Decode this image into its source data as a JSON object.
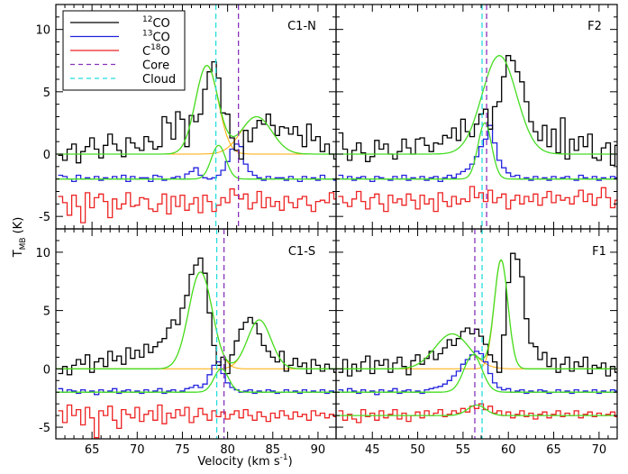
{
  "figure": {
    "ylabel": "T",
    "ylabel_sub": "MB",
    "ylabel_unit": "(K)",
    "xlabel": "Velocity (km s",
    "xlabel_sup": "-1",
    "xlabel_close": ")"
  },
  "legend": {
    "entries": [
      {
        "sup": "12",
        "text": "CO",
        "color": "#000000",
        "dash": false
      },
      {
        "sup": "13",
        "text": "CO",
        "color": "#2222dd",
        "dash": false
      },
      {
        "pre": "C",
        "sup": "18",
        "text": "O",
        "color": "#ee2222",
        "dash": false
      },
      {
        "text": "Core",
        "color": "#8833bb",
        "dash": true
      },
      {
        "text": "Cloud",
        "color": "#22dddd",
        "dash": true
      }
    ]
  },
  "colors": {
    "co12": "#000000",
    "co13": "#2222dd",
    "c18o": "#ee2222",
    "gauss": "#44dd22",
    "comp": "#ffaa00",
    "core": "#8833bb",
    "cloud": "#22dddd"
  },
  "chart_data": [
    {
      "panel": "C1-N",
      "type": "line",
      "xlim": [
        61,
        92
      ],
      "ylim": [
        -6,
        12
      ],
      "xticks": [
        "65",
        "70",
        "75",
        "80",
        "85",
        "90"
      ],
      "yticks": [
        "-5",
        "0",
        "5",
        "10"
      ],
      "show_xticks": false,
      "show_yticks": true,
      "core": 81.2,
      "cloud": 78.7,
      "co12": {
        "x0": 61.5,
        "dx": 0.5,
        "values": [
          -0.1,
          -0.5,
          0.4,
          0.8,
          -0.7,
          0.2,
          0.6,
          1.3,
          0.4,
          -0.3,
          0.7,
          1.6,
          0.8,
          0.3,
          -0.2,
          1.3,
          0.9,
          0.5,
          0.3,
          1.4,
          1.0,
          0.4,
          0.6,
          3.0,
          2.5,
          1.2,
          3.4,
          2.8,
          0.6,
          3.1,
          2.6,
          3.2,
          5.2,
          6.6,
          7.4,
          6.1,
          3.3,
          3.2,
          1.3,
          0.3,
          -0.4,
          1.9,
          1.0,
          2.1,
          2.7,
          2.4,
          3.2,
          2.3,
          1.5,
          2.2,
          2.1,
          1.6,
          2.2,
          1.5,
          0.6,
          2.4,
          1.1,
          1.4,
          0.2,
          0.8,
          0.0,
          -0.4
        ]
      },
      "co13": {
        "x0": 61.5,
        "dx": 0.5,
        "baseline": -2.0,
        "values": [
          -1.7,
          -1.8,
          -2.0,
          -2.2,
          -1.7,
          -2.0,
          -1.9,
          -2.0,
          -1.8,
          -2.1,
          -1.9,
          -2.0,
          -1.8,
          -2.0,
          -1.7,
          -2.2,
          -1.8,
          -2.0,
          -1.9,
          -1.9,
          -2.2,
          -1.7,
          -1.8,
          -2.1,
          -2.0,
          -1.9,
          -1.8,
          -2.0,
          -1.6,
          -1.4,
          -1.1,
          -1.7,
          -1.9,
          -2.0,
          -1.9,
          -1.7,
          -1.3,
          -0.6,
          0.4,
          0.8,
          0.6,
          -0.8,
          -1.4,
          -1.7,
          -1.9,
          -2.1,
          -1.8,
          -2.0,
          -1.9,
          -1.9,
          -2.1,
          -1.8,
          -2.0,
          -2.2,
          -1.8,
          -2.0,
          -1.9,
          -2.1,
          -1.7,
          -2.0,
          -2.0,
          -2.1
        ]
      },
      "c18o": {
        "x0": 61.5,
        "dx": 0.5,
        "values": [
          -3.4,
          -3.9,
          -4.9,
          -3.3,
          -4.2,
          -5.5,
          -3.1,
          -4.3,
          -3.5,
          -3.2,
          -3.8,
          -5.1,
          -3.6,
          -4.4,
          -4.0,
          -3.1,
          -4.2,
          -4.1,
          -3.5,
          -3.6,
          -4.4,
          -4.6,
          -4.0,
          -3.2,
          -4.8,
          -3.4,
          -4.2,
          -3.3,
          -4.5,
          -4.0,
          -3.5,
          -4.7,
          -3.3,
          -3.8,
          -4.6,
          -4.1,
          -3.5,
          -3.9,
          -2.8,
          -3.3,
          -3.6,
          -3.2,
          -4.4,
          -3.9,
          -3.0,
          -4.3,
          -3.5,
          -4.2,
          -3.8,
          -4.5,
          -3.4,
          -3.9,
          -4.3,
          -3.6,
          -3.4,
          -4.1,
          -4.6,
          -3.8,
          -3.7,
          -3.9,
          -3.1,
          -3.6
        ]
      },
      "gauss12": [
        {
          "a": 7.1,
          "c": 77.7,
          "s": 1.25
        },
        {
          "a": 3.0,
          "c": 83.2,
          "s": 1.7
        }
      ],
      "gauss13": [
        {
          "a": 2.7,
          "c": 79.0,
          "s": 0.8
        }
      ],
      "comp_baseline": 0
    },
    {
      "panel": "F2",
      "type": "line",
      "xlim": [
        41,
        72
      ],
      "ylim": [
        -6,
        12
      ],
      "xticks": [
        "45",
        "50",
        "55",
        "60",
        "65",
        "70"
      ],
      "yticks": [
        "-5",
        "0",
        "5",
        "10"
      ],
      "show_xticks": false,
      "show_yticks": false,
      "core": 57.6,
      "cloud": 57.1,
      "co12": {
        "x0": 41.5,
        "dx": 0.5,
        "values": [
          1.7,
          0.4,
          -0.5,
          0.3,
          0.9,
          0.1,
          -0.6,
          -0.2,
          1.1,
          0.4,
          0.8,
          0.0,
          -0.4,
          0.2,
          1.2,
          0.5,
          0.0,
          1.2,
          1.3,
          0.7,
          0.2,
          0.9,
          0.8,
          1.5,
          1.3,
          2.1,
          1.1,
          2.8,
          1.8,
          1.4,
          2.4,
          3.2,
          3.6,
          2.0,
          3.8,
          4.2,
          6.2,
          7.9,
          7.5,
          6.6,
          5.8,
          4.2,
          2.6,
          1.8,
          1.1,
          2.3,
          0.6,
          2.0,
          0.1,
          2.9,
          -0.4,
          1.2,
          0.3,
          1.4,
          0.6,
          1.6,
          -0.3,
          -0.5,
          0.5,
          0.9,
          -0.9,
          0.7
        ]
      },
      "co13": {
        "x0": 41.5,
        "dx": 0.5,
        "baseline": -2.0,
        "values": [
          -1.7,
          -2.0,
          -1.8,
          -2.1,
          -1.9,
          -1.8,
          -2.0,
          -2.2,
          -1.8,
          -1.9,
          -2.0,
          -2.1,
          -1.8,
          -2.0,
          -1.7,
          -2.1,
          -1.9,
          -2.0,
          -1.8,
          -2.1,
          -1.9,
          -1.8,
          -2.2,
          -1.9,
          -1.7,
          -1.9,
          -1.6,
          -1.4,
          -1.2,
          -0.8,
          -0.2,
          0.6,
          1.2,
          2.3,
          0.9,
          -0.5,
          -1.1,
          -1.5,
          -1.8,
          -1.7,
          -2.0,
          -1.9,
          -2.1,
          -1.8,
          -2.0,
          -1.9,
          -2.1,
          -1.8,
          -2.0,
          -1.9,
          -1.8,
          -2.0,
          -2.1,
          -1.7,
          -1.9,
          -2.0,
          -1.8,
          -2.1,
          -1.9,
          -2.0,
          -1.8,
          -1.9
        ]
      },
      "c18o": {
        "x0": 41.5,
        "dx": 0.5,
        "values": [
          -3.4,
          -3.9,
          -4.2,
          -3.6,
          -3.0,
          -3.8,
          -4.4,
          -3.5,
          -3.2,
          -4.0,
          -4.6,
          -3.3,
          -3.9,
          -3.6,
          -4.1,
          -3.2,
          -3.7,
          -4.4,
          -3.3,
          -4.0,
          -3.6,
          -4.6,
          -3.1,
          -3.8,
          -4.2,
          -3.4,
          -4.0,
          -3.6,
          -3.8,
          -2.6,
          -3.5,
          -3.1,
          -3.8,
          -2.9,
          -3.9,
          -3.5,
          -3.2,
          -4.4,
          -3.7,
          -3.3,
          -4.0,
          -3.4,
          -3.8,
          -3.2,
          -4.1,
          -3.5,
          -3.0,
          -3.9,
          -3.3,
          -3.7,
          -3.5,
          -4.0,
          -3.4,
          -2.9,
          -3.8,
          -3.2,
          -4.1,
          -3.5,
          -2.7,
          -3.5,
          -4.3,
          -3.7
        ]
      },
      "gauss12": [
        {
          "a": 7.9,
          "c": 59.0,
          "s": 1.9
        }
      ],
      "gauss13": [
        {
          "a": 4.5,
          "c": 57.4,
          "s": 0.75
        }
      ],
      "comp_baseline": null
    },
    {
      "panel": "C1-S",
      "type": "line",
      "xlim": [
        61,
        92
      ],
      "ylim": [
        -6,
        12
      ],
      "xticks": [
        "65",
        "70",
        "75",
        "80",
        "85",
        "90"
      ],
      "yticks": [
        "-5",
        "0",
        "5",
        "10"
      ],
      "show_xticks": true,
      "show_yticks": true,
      "core": 79.6,
      "cloud": 78.8,
      "co12": {
        "x0": 61.5,
        "dx": 0.5,
        "values": [
          -0.4,
          0.2,
          -0.5,
          0.3,
          0.8,
          0.4,
          1.2,
          -0.3,
          0.6,
          0.9,
          0.2,
          1.5,
          0.7,
          1.1,
          0.4,
          1.8,
          0.9,
          1.6,
          1.0,
          2.1,
          1.4,
          1.9,
          2.3,
          2.6,
          3.5,
          4.2,
          3.8,
          5.2,
          6.3,
          8.1,
          8.9,
          9.5,
          8.2,
          4.8,
          2.0,
          0.3,
          1.0,
          -0.4,
          1.2,
          2.4,
          3.4,
          4.0,
          4.4,
          3.9,
          3.0,
          2.0,
          1.5,
          1.0,
          0.6,
          1.5,
          -0.2,
          0.3,
          0.9,
          0.2,
          0.5,
          -0.4,
          0.8,
          0.3,
          -0.2,
          0.4,
          0.0,
          -0.3
        ]
      },
      "co13": {
        "x0": 61.5,
        "dx": 0.5,
        "baseline": -2.0,
        "values": [
          -1.7,
          -2.0,
          -1.8,
          -1.9,
          -2.1,
          -1.8,
          -2.0,
          -1.9,
          -2.2,
          -1.8,
          -2.0,
          -1.9,
          -1.7,
          -2.1,
          -1.9,
          -1.8,
          -2.0,
          -1.9,
          -2.1,
          -1.8,
          -2.0,
          -1.9,
          -1.7,
          -2.1,
          -1.9,
          -1.8,
          -2.0,
          -1.9,
          -1.7,
          -1.6,
          -1.4,
          -1.6,
          -1.3,
          -0.5,
          0.3,
          0.6,
          -0.4,
          -1.2,
          -1.6,
          -1.8,
          -2.0,
          -1.9,
          -1.8,
          -2.1,
          -1.9,
          -2.0,
          -1.8,
          -1.9,
          -2.1,
          -2.0,
          -1.8,
          -2.0,
          -1.9,
          -2.1,
          -1.8,
          -2.0,
          -1.9,
          -2.0,
          -1.8,
          -2.1,
          -1.9,
          -2.0
        ]
      },
      "c18o": {
        "x0": 61.5,
        "dx": 0.5,
        "values": [
          -3.6,
          -4.6,
          -3.1,
          -4.0,
          -3.5,
          -4.8,
          -3.3,
          -4.2,
          -5.9,
          -3.6,
          -4.0,
          -3.2,
          -4.4,
          -5.1,
          -3.5,
          -3.9,
          -4.2,
          -3.3,
          -4.5,
          -3.9,
          -3.6,
          -4.4,
          -3.1,
          -4.7,
          -3.8,
          -4.2,
          -3.5,
          -4.0,
          -3.3,
          -4.6,
          -4.1,
          -3.4,
          -3.9,
          -4.4,
          -3.6,
          -4.1,
          -3.7,
          -4.3,
          -3.9,
          -3.6,
          -4.2,
          -3.5,
          -4.0,
          -4.4,
          -3.7,
          -4.1,
          -4.5,
          -3.8,
          -4.2,
          -3.6,
          -4.0,
          -4.3,
          -3.7,
          -4.1,
          -3.9,
          -4.4,
          -3.6,
          -4.0,
          -3.8,
          -4.2,
          -3.9,
          -4.1
        ]
      },
      "gauss12": [
        {
          "a": 8.3,
          "c": 77.0,
          "s": 1.3
        },
        {
          "a": 4.2,
          "c": 83.5,
          "s": 1.3
        }
      ],
      "gauss13": [
        {
          "a": 2.0,
          "c": 79.3,
          "s": 0.8
        }
      ],
      "comp_baseline": 0
    },
    {
      "panel": "F1",
      "type": "line",
      "xlim": [
        41,
        72
      ],
      "ylim": [
        -6,
        12
      ],
      "xticks": [
        "45",
        "50",
        "55",
        "60",
        "65",
        "70"
      ],
      "yticks": [
        "-5",
        "0",
        "5",
        "10"
      ],
      "show_xticks": true,
      "show_yticks": false,
      "core": 56.3,
      "cloud": 57.1,
      "co12": {
        "x0": 41.5,
        "dx": 0.5,
        "values": [
          -0.3,
          0.8,
          -0.6,
          0.4,
          -0.2,
          0.6,
          1.1,
          -0.4,
          0.7,
          0.3,
          0.8,
          -0.3,
          0.5,
          1.0,
          0.2,
          -0.5,
          0.7,
          1.2,
          0.4,
          0.9,
          1.5,
          0.8,
          1.3,
          1.8,
          2.5,
          2.0,
          2.6,
          3.2,
          3.5,
          3.0,
          3.4,
          2.8,
          2.1,
          1.2,
          0.6,
          -0.3,
          2.9,
          7.4,
          9.9,
          9.4,
          7.9,
          4.3,
          2.2,
          1.9,
          0.8,
          1.4,
          0.2,
          0.9,
          -0.3,
          0.4,
          1.0,
          -0.2,
          0.6,
          0.2,
          1.0,
          -0.4,
          0.3,
          0.1,
          0.5,
          -0.6,
          0.2,
          -0.3
        ]
      },
      "co13": {
        "x0": 41.5,
        "dx": 0.5,
        "baseline": -2.0,
        "values": [
          -1.8,
          -2.0,
          -1.7,
          -1.9,
          -2.1,
          -1.8,
          -2.0,
          -1.9,
          -2.2,
          -1.8,
          -2.0,
          -1.9,
          -1.7,
          -2.1,
          -1.9,
          -1.8,
          -2.0,
          -1.9,
          -2.1,
          -1.8,
          -1.7,
          -1.6,
          -1.5,
          -1.3,
          -1.0,
          -0.6,
          -0.2,
          0.4,
          0.8,
          1.2,
          1.5,
          1.3,
          0.6,
          -0.4,
          -1.2,
          -1.6,
          -1.8,
          -1.7,
          -2.0,
          -1.9,
          -1.8,
          -2.1,
          -1.9,
          -2.0,
          -1.8,
          -1.9,
          -2.1,
          -2.0,
          -1.8,
          -2.0,
          -1.9,
          -2.1,
          -1.8,
          -2.0,
          -1.9,
          -2.0,
          -1.8,
          -2.1,
          -1.9,
          -2.0,
          -1.8,
          -1.9
        ]
      },
      "c18o": {
        "x0": 41.5,
        "dx": 0.5,
        "baseline": -4.0,
        "values": [
          -3.6,
          -4.4,
          -3.9,
          -4.3,
          -4.6,
          -3.5,
          -4.1,
          -3.8,
          -4.4,
          -3.6,
          -4.2,
          -3.9,
          -3.5,
          -4.3,
          -3.8,
          -4.5,
          -4.0,
          -3.7,
          -4.2,
          -3.6,
          -4.0,
          -3.8,
          -3.5,
          -4.1,
          -3.9,
          -3.6,
          -3.8,
          -3.4,
          -3.7,
          -3.2,
          -3.4,
          -3.0,
          -3.5,
          -3.2,
          -3.8,
          -3.6,
          -4.0,
          -3.7,
          -4.2,
          -3.9,
          -3.6,
          -4.1,
          -3.8,
          -4.3,
          -3.9,
          -3.7,
          -4.2,
          -3.9,
          -3.6,
          -4.1,
          -3.8,
          -4.0,
          -3.6,
          -4.2,
          -3.9,
          -3.7,
          -4.1,
          -3.8,
          -4.0,
          -3.9,
          -3.7,
          -4.1
        ]
      },
      "gauss12": [
        {
          "a": 9.3,
          "c": 59.2,
          "s": 0.75
        },
        {
          "a": 3.0,
          "c": 53.8,
          "s": 1.9
        }
      ],
      "gauss13": [
        {
          "a": 3.2,
          "c": 56.1,
          "s": 1.0
        }
      ],
      "gauss18": [
        {
          "a": 0.9,
          "c": 56.5,
          "s": 1.0
        }
      ],
      "comp_baseline": 0
    }
  ]
}
